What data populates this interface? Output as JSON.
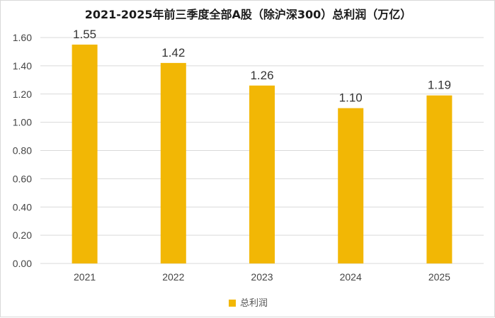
{
  "chart_data": {
    "type": "bar",
    "title": "2021-2025年前三季度全部A股（除沪深300）总利润（万亿）",
    "categories": [
      "2021",
      "2022",
      "2023",
      "2024",
      "2025"
    ],
    "series": [
      {
        "name": "总利润",
        "values": [
          1.55,
          1.42,
          1.26,
          1.1,
          1.19
        ]
      }
    ],
    "data_labels": [
      "1.55",
      "1.42",
      "1.26",
      "1.10",
      "1.19"
    ],
    "y_ticks": [
      "0.00",
      "0.20",
      "0.40",
      "0.60",
      "0.80",
      "1.00",
      "1.20",
      "1.40",
      "1.60"
    ],
    "ylim": [
      0,
      1.6
    ],
    "grid": true,
    "legend_position": "bottom",
    "colors": {
      "bar": "#f2b705",
      "grid": "#d9d9d9"
    }
  }
}
